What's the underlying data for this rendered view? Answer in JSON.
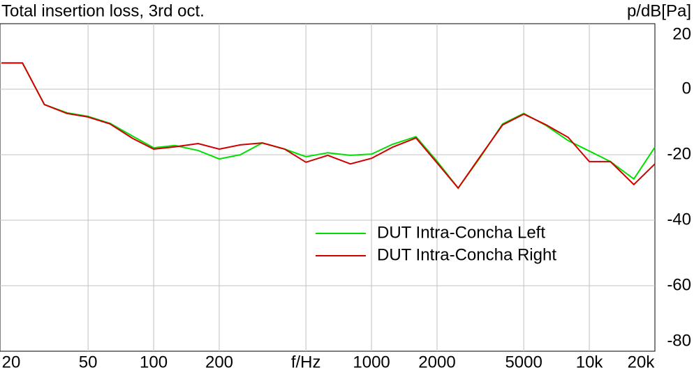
{
  "chart_data": {
    "type": "line",
    "title": "Total insertion loss, 3rd oct.",
    "y_label": "p/dB[Pa]",
    "x": [
      20,
      25,
      31.5,
      40,
      50,
      63,
      80,
      100,
      125,
      160,
      200,
      250,
      315,
      400,
      500,
      630,
      800,
      1000,
      1250,
      1600,
      2000,
      2500,
      3150,
      4000,
      5000,
      6300,
      8000,
      10000,
      12500,
      16000,
      20000
    ],
    "series": [
      {
        "name": "DUT Intra-Concha Left",
        "color": "#00e000",
        "values": [
          8,
          8,
          -4.7,
          -7.2,
          -8.3,
          -10.4,
          -14.3,
          -17.9,
          -17.2,
          -18.7,
          -21.3,
          -20,
          -16.4,
          -18.3,
          -20.6,
          -19.4,
          -20.2,
          -19.8,
          -16.8,
          -14.5,
          -22,
          -30.2,
          -20.9,
          -10.6,
          -7.4,
          -11,
          -15.7,
          -18.9,
          -22.1,
          -27.4,
          -17.7
        ]
      },
      {
        "name": "DUT Intra-Concha Right",
        "color": "#d00000",
        "values": [
          8,
          8,
          -4.7,
          -7.4,
          -8.5,
          -10.6,
          -15,
          -18.3,
          -17.6,
          -16.6,
          -18.3,
          -17,
          -16.4,
          -18.3,
          -22.3,
          -20.2,
          -22.8,
          -21.1,
          -17.7,
          -14.9,
          -22.5,
          -30.2,
          -20.6,
          -10.9,
          -7.6,
          -10.8,
          -14.7,
          -22.1,
          -22.1,
          -29.1,
          -22.8
        ]
      }
    ],
    "xlim": [
      20,
      20000
    ],
    "log_x": true,
    "xticks": [
      20,
      50,
      100,
      200,
      {
        "value": 500,
        "label": "f/Hz"
      },
      1000,
      2000,
      5000,
      {
        "value": 10000,
        "label": "10k"
      },
      {
        "value": 20000,
        "label": "20k"
      }
    ],
    "ylim": [
      -80,
      20
    ],
    "yticks": [
      20,
      0,
      -20,
      -40,
      -60,
      -80
    ],
    "grid": true,
    "legend": "lower-right"
  }
}
